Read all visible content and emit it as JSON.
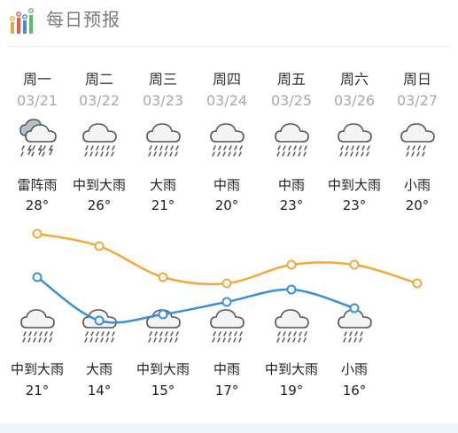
{
  "header": {
    "title": "每日预报",
    "icon": "chart-bars-icon"
  },
  "colors": {
    "high": "#F2A93B",
    "low": "#3B8FD4",
    "icon_stroke": "#555555",
    "icon_fill": "#f4f4f4",
    "icon_fill_dark": "#b8c2cc"
  },
  "days": [
    {
      "name": "周一",
      "date": "03/21",
      "day_cond": "雷阵雨",
      "day_icon": "thunderstorm-icon",
      "high": "28°",
      "night_cond": "中到大雨",
      "night_icon": "heavy-rain-icon",
      "low": "21°",
      "high_v": 28,
      "low_v": 21
    },
    {
      "name": "周二",
      "date": "03/22",
      "day_cond": "中到大雨",
      "day_icon": "heavy-rain-icon",
      "high": "26°",
      "night_cond": "大雨",
      "night_icon": "heavy-rain-icon",
      "low": "14°",
      "high_v": 26,
      "low_v": 14
    },
    {
      "name": "周三",
      "date": "03/23",
      "day_cond": "大雨",
      "day_icon": "heavy-rain-icon",
      "high": "21°",
      "night_cond": "中到大雨",
      "night_icon": "heavy-rain-icon",
      "low": "15°",
      "high_v": 21,
      "low_v": 15
    },
    {
      "name": "周四",
      "date": "03/24",
      "day_cond": "中雨",
      "day_icon": "rain-icon",
      "high": "20°",
      "night_cond": "中雨",
      "night_icon": "rain-icon",
      "low": "17°",
      "high_v": 20,
      "low_v": 17
    },
    {
      "name": "周五",
      "date": "03/25",
      "day_cond": "中雨",
      "day_icon": "rain-icon",
      "high": "23°",
      "night_cond": "中到大雨",
      "night_icon": "heavy-rain-icon",
      "low": "19°",
      "high_v": 23,
      "low_v": 19
    },
    {
      "name": "周六",
      "date": "03/26",
      "day_cond": "中到大雨",
      "day_icon": "heavy-rain-icon",
      "high": "23°",
      "night_cond": "小雨",
      "night_icon": "light-rain-icon",
      "low": "16°",
      "high_v": 23,
      "low_v": 16
    },
    {
      "name": "周日",
      "date": "03/27",
      "day_cond": "小雨",
      "day_icon": "light-rain-icon",
      "high": "20°",
      "night_cond": "",
      "night_icon": "",
      "low": "",
      "high_v": 20,
      "low_v": null
    }
  ]
}
